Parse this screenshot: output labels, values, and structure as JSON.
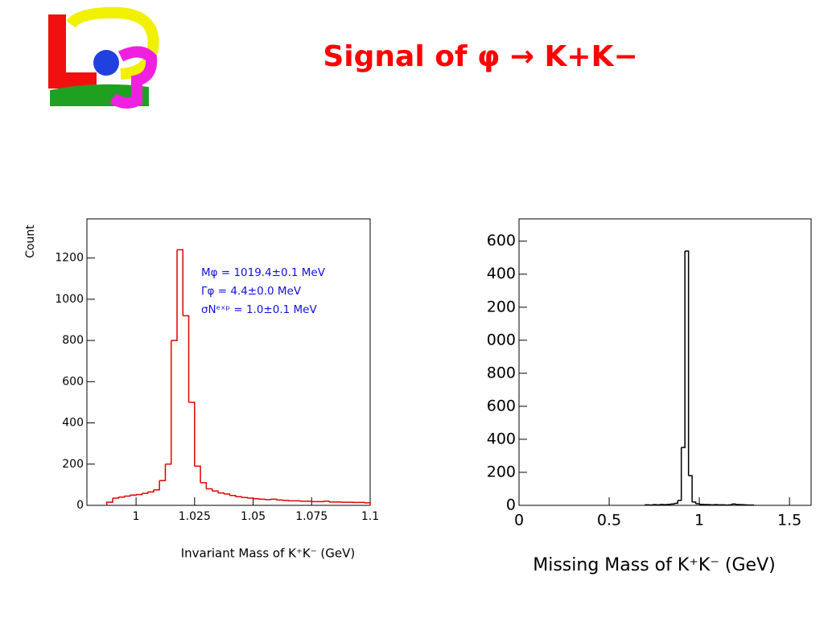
{
  "slide_title": "Signal of φ → K+K−",
  "chart_data": [
    {
      "type": "histogram",
      "color": "#e00000",
      "y_label": "Count",
      "x_label": "Invariant Mass of K⁺K⁻ (GeV)",
      "annotations": [
        "Mφ  = 1019.4±0.1 MeV",
        "Γφ  =       4.4±0.0 MeV",
        "σNᵉˣᵖ =       1.0±0.1 MeV"
      ],
      "bins": [
        0.9875,
        0.99,
        0.9925,
        0.995,
        0.9975,
        1.0,
        1.0025,
        1.005,
        1.0075,
        1.01,
        1.0125,
        1.015,
        1.0175,
        1.02,
        1.0225,
        1.025,
        1.0275,
        1.03,
        1.0325,
        1.035,
        1.0375,
        1.04,
        1.0425,
        1.045,
        1.0475,
        1.05,
        1.0525,
        1.055,
        1.0575,
        1.06,
        1.0625,
        1.065,
        1.0675,
        1.07,
        1.0725,
        1.075,
        1.0775,
        1.08,
        1.0825,
        1.085,
        1.0875,
        1.09,
        1.0925,
        1.095,
        1.0975,
        1.1
      ],
      "values": [
        15,
        35,
        40,
        45,
        50,
        52,
        58,
        65,
        75,
        120,
        200,
        800,
        1240,
        920,
        500,
        190,
        110,
        80,
        70,
        60,
        55,
        48,
        42,
        38,
        35,
        32,
        30,
        28,
        30,
        26,
        24,
        22,
        22,
        20,
        20,
        18,
        18,
        20,
        16,
        16,
        15,
        15,
        14,
        14,
        12
      ],
      "xlim": [
        0.979,
        1.1
      ],
      "xticks": [
        1,
        1.025,
        1.05,
        1.075,
        1.1
      ],
      "ylim": [
        0,
        1390
      ],
      "yticks": [
        0,
        200,
        400,
        600,
        800,
        1000,
        1200
      ]
    },
    {
      "type": "histogram",
      "color": "#000000",
      "x_label": "Missing Mass of K⁺K⁻ (GeV)",
      "bins": [
        0.7,
        0.72,
        0.74,
        0.76,
        0.78,
        0.8,
        0.82,
        0.84,
        0.86,
        0.88,
        0.9,
        0.92,
        0.94,
        0.96,
        0.98,
        1.0,
        1.02,
        1.04,
        1.06,
        1.08,
        1.1,
        1.12,
        1.14,
        1.16,
        1.18,
        1.2,
        1.22,
        1.24,
        1.26,
        1.28,
        1.3
      ],
      "values": [
        3,
        2,
        4,
        3,
        5,
        4,
        6,
        8,
        12,
        30,
        350,
        1540,
        180,
        20,
        10,
        6,
        5,
        4,
        3,
        4,
        3,
        3,
        2,
        3,
        8,
        5,
        4,
        3,
        2,
        2
      ],
      "xlim": [
        0,
        1.62
      ],
      "xticks": [
        0,
        0.5,
        1,
        1.5
      ],
      "ylim": [
        0,
        1735
      ],
      "yticks": [
        0,
        {
          "value": 200,
          "label": "200"
        },
        {
          "value": 400,
          "label": "400"
        },
        {
          "value": 600,
          "label": "600"
        },
        {
          "value": 800,
          "label": "800"
        },
        {
          "value": 1000,
          "label": "000"
        },
        {
          "value": 1200,
          "label": "200"
        },
        {
          "value": 1400,
          "label": "400"
        },
        {
          "value": 1600,
          "label": "600"
        }
      ]
    }
  ]
}
